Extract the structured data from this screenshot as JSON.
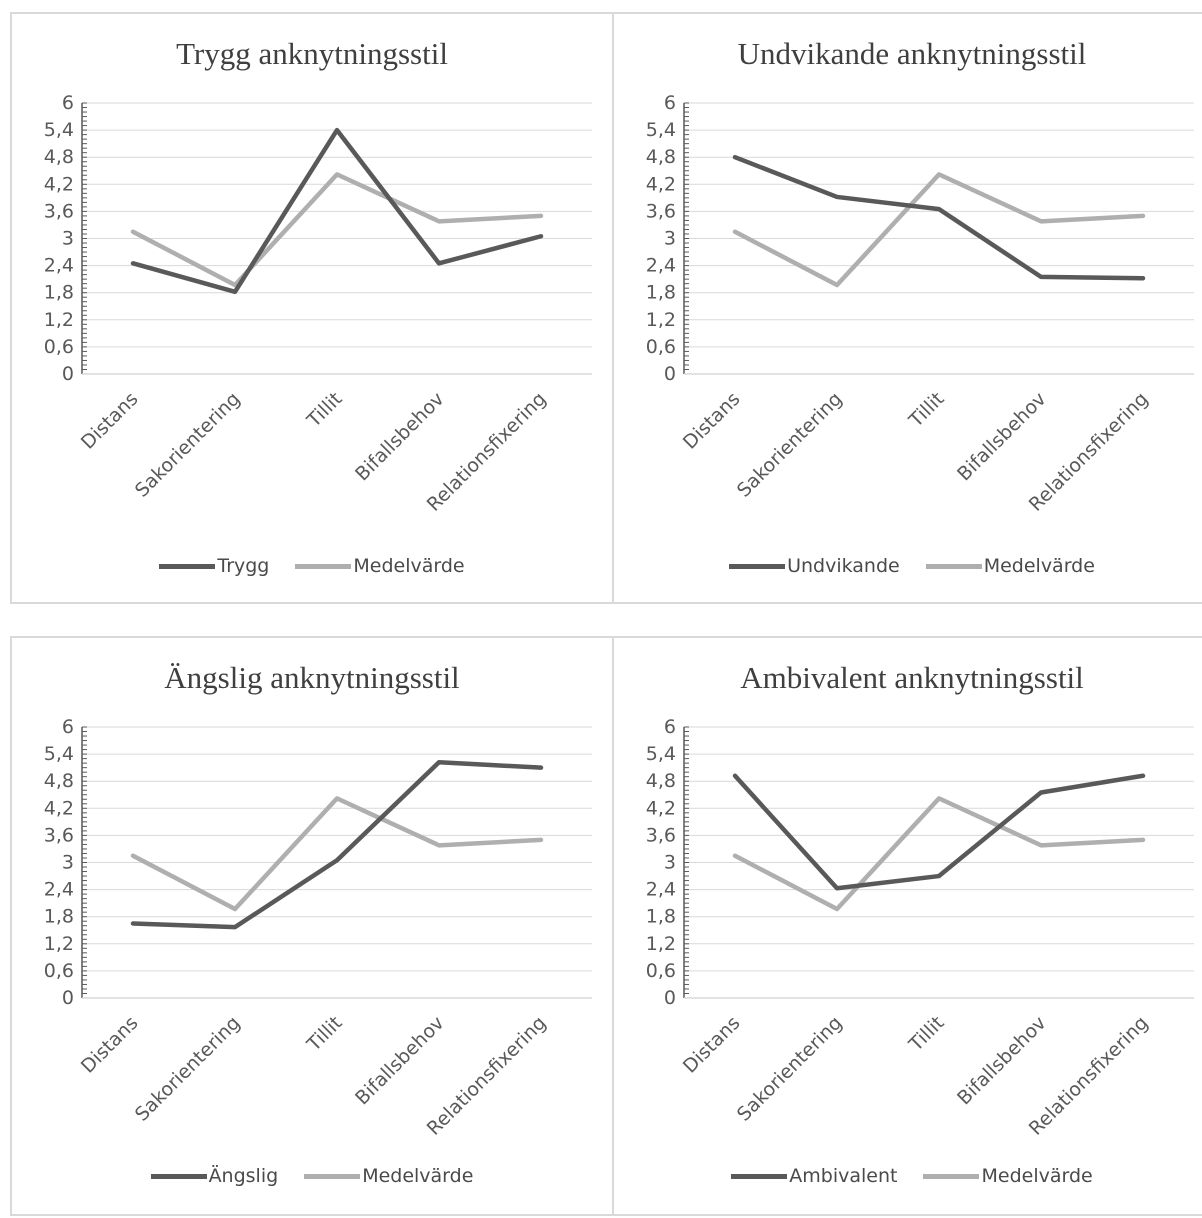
{
  "colors": {
    "primary": "#595959",
    "average": "#afafaf",
    "grid": "#d9d9d9",
    "axis": "#595959",
    "text": "#595959"
  },
  "chart_data": [
    {
      "type": "line",
      "title": "Trygg anknytningsstil",
      "categories": [
        "Distans",
        "Sakorientering",
        "Tillit",
        "Bifallsbehov",
        "Relationsfixering"
      ],
      "y_ticks": [
        "0",
        "0,6",
        "1,2",
        "1,8",
        "2,4",
        "3",
        "3,6",
        "4,2",
        "4,8",
        "5,4",
        "6"
      ],
      "ylim": [
        0,
        6
      ],
      "grid": true,
      "legend": "bottom",
      "series": [
        {
          "name": "Trygg",
          "values": [
            2.45,
            1.82,
            5.4,
            2.45,
            3.05
          ]
        },
        {
          "name": "Medelvärde",
          "values": [
            3.15,
            1.97,
            4.42,
            3.38,
            3.5
          ]
        }
      ]
    },
    {
      "type": "line",
      "title": "Undvikande anknytningsstil",
      "categories": [
        "Distans",
        "Sakorientering",
        "Tillit",
        "Bifallsbehov",
        "Relationsfixering"
      ],
      "y_ticks": [
        "0",
        "0,6",
        "1,2",
        "1,8",
        "2,4",
        "3",
        "3,6",
        "4,2",
        "4,8",
        "5,4",
        "6"
      ],
      "ylim": [
        0,
        6
      ],
      "grid": true,
      "legend": "bottom",
      "series": [
        {
          "name": "Undvikande",
          "values": [
            4.8,
            3.92,
            3.65,
            2.15,
            2.12
          ]
        },
        {
          "name": "Medelvärde",
          "values": [
            3.15,
            1.97,
            4.42,
            3.38,
            3.5
          ]
        }
      ]
    },
    {
      "type": "line",
      "title": "Ängslig anknytningsstil",
      "categories": [
        "Distans",
        "Sakorientering",
        "Tillit",
        "Bifallsbehov",
        "Relationsfixering"
      ],
      "y_ticks": [
        "0",
        "0,6",
        "1,2",
        "1,8",
        "2,4",
        "3",
        "3,6",
        "4,2",
        "4,8",
        "5,4",
        "6"
      ],
      "ylim": [
        0,
        6
      ],
      "grid": true,
      "legend": "bottom",
      "series": [
        {
          "name": "Ängslig",
          "values": [
            1.65,
            1.57,
            3.05,
            5.22,
            5.1
          ]
        },
        {
          "name": "Medelvärde",
          "values": [
            3.15,
            1.97,
            4.42,
            3.38,
            3.5
          ]
        }
      ]
    },
    {
      "type": "line",
      "title": "Ambivalent anknytningsstil",
      "categories": [
        "Distans",
        "Sakorientering",
        "Tillit",
        "Bifallsbehov",
        "Relationsfixering"
      ],
      "y_ticks": [
        "0",
        "0,6",
        "1,2",
        "1,8",
        "2,4",
        "3",
        "3,6",
        "4,2",
        "4,8",
        "5,4",
        "6"
      ],
      "ylim": [
        0,
        6
      ],
      "grid": true,
      "legend": "bottom",
      "series": [
        {
          "name": "Ambivalent",
          "values": [
            4.92,
            2.43,
            2.7,
            4.55,
            4.92
          ]
        },
        {
          "name": "Medelvärde",
          "values": [
            3.15,
            1.97,
            4.42,
            3.38,
            3.5
          ]
        }
      ]
    }
  ]
}
